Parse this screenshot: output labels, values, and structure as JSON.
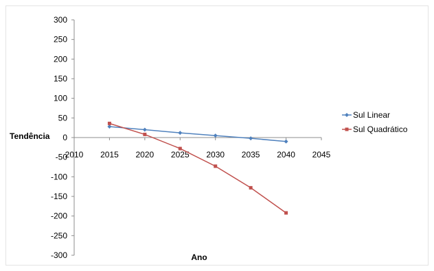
{
  "chart_data": {
    "type": "scatter",
    "xlabel": "Ano",
    "ylabel": "Tendência",
    "xlim": [
      2010,
      2045
    ],
    "ylim": [
      -300,
      300
    ],
    "x_ticks": [
      2010,
      2015,
      2020,
      2025,
      2030,
      2035,
      2040,
      2045
    ],
    "y_ticks": [
      300,
      250,
      200,
      150,
      100,
      50,
      0,
      -50,
      -100,
      -150,
      -200,
      -250,
      -300
    ],
    "grid": false,
    "legend_position": "right",
    "x": [
      2015,
      2020,
      2025,
      2030,
      2035,
      2040
    ],
    "series": [
      {
        "name": "Sul Linear",
        "color": "#4f81bd",
        "marker": "diamond",
        "values": [
          28,
          20,
          12,
          5,
          -2,
          -10
        ]
      },
      {
        "name": "Sul Quadrático",
        "color": "#c0504d",
        "marker": "square",
        "values": [
          36,
          8,
          -28,
          -73,
          -128,
          -192
        ]
      }
    ]
  }
}
